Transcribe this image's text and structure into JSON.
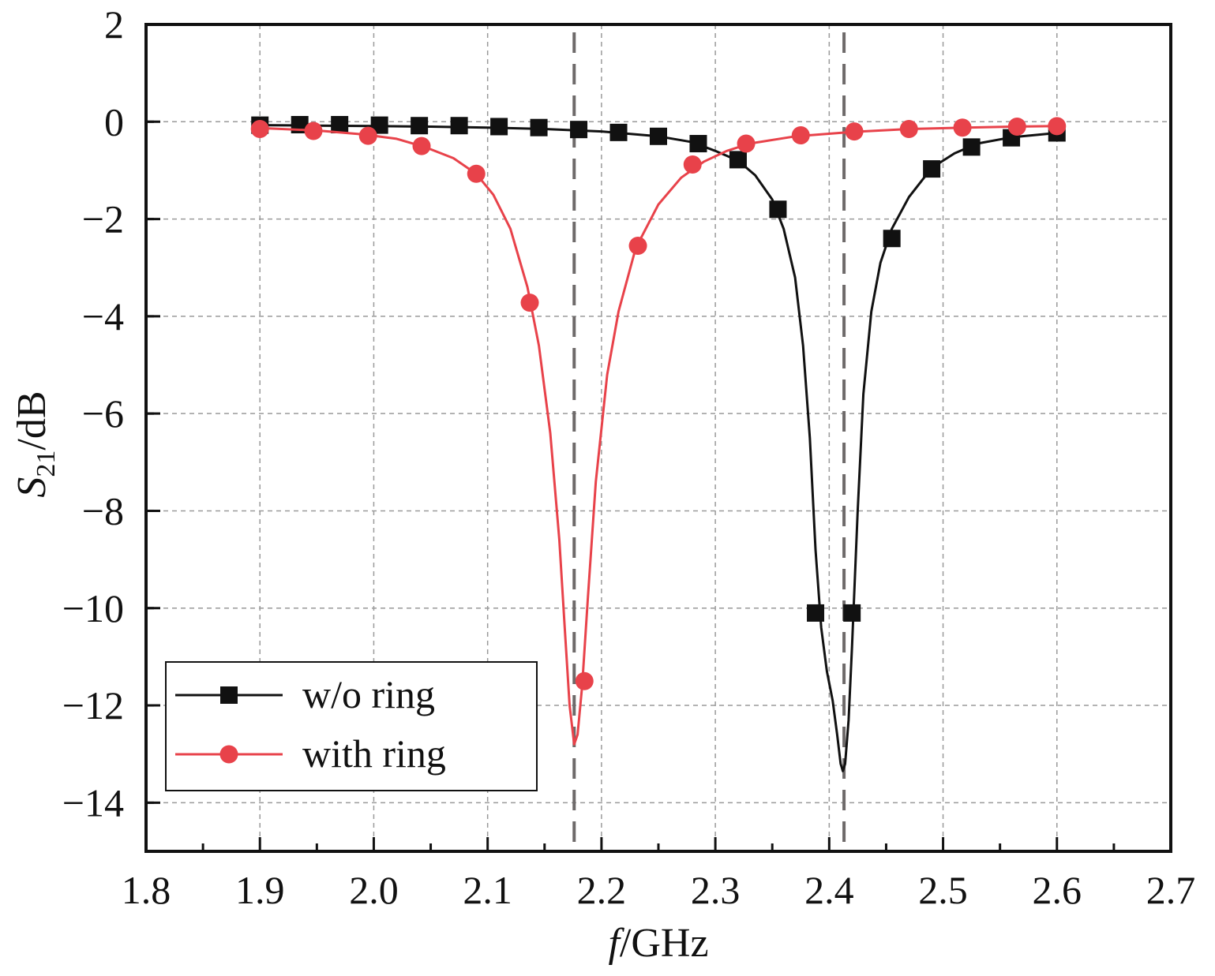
{
  "chart_data": {
    "type": "line",
    "xlabel_italic": "f",
    "xlabel_rest": "/GHz",
    "ylabel_main": "S",
    "ylabel_sub": "21",
    "ylabel_rest": "/dB",
    "xlim": [
      1.8,
      2.7
    ],
    "ylim": [
      -15,
      2
    ],
    "x_ticks": [
      "1.8",
      "1.9",
      "2.0",
      "2.1",
      "2.2",
      "2.3",
      "2.4",
      "2.5",
      "2.6",
      "2.7"
    ],
    "y_ticks": [
      "2",
      "0",
      "−2",
      "−4",
      "−6",
      "−8",
      "−10",
      "−12",
      "−14"
    ],
    "grid": true,
    "legend_position": "bottom-left",
    "reference_lines_x": [
      2.176,
      2.413
    ],
    "series": [
      {
        "name": "w/o ring",
        "color": "#111111",
        "marker": "square",
        "curve": [
          [
            1.9,
            -0.07
          ],
          [
            1.95,
            -0.08
          ],
          [
            2.0,
            -0.09
          ],
          [
            2.05,
            -0.1
          ],
          [
            2.1,
            -0.12
          ],
          [
            2.15,
            -0.15
          ],
          [
            2.2,
            -0.2
          ],
          [
            2.25,
            -0.3
          ],
          [
            2.28,
            -0.42
          ],
          [
            2.3,
            -0.6
          ],
          [
            2.32,
            -0.8
          ],
          [
            2.335,
            -1.1
          ],
          [
            2.35,
            -1.6
          ],
          [
            2.36,
            -2.2
          ],
          [
            2.37,
            -3.2
          ],
          [
            2.377,
            -4.6
          ],
          [
            2.383,
            -6.5
          ],
          [
            2.388,
            -8.8
          ],
          [
            2.393,
            -10.4
          ],
          [
            2.398,
            -11.3
          ],
          [
            2.403,
            -11.9
          ],
          [
            2.407,
            -12.6
          ],
          [
            2.41,
            -13.2
          ],
          [
            2.412,
            -13.35
          ],
          [
            2.414,
            -13.2
          ],
          [
            2.417,
            -12.3
          ],
          [
            2.42,
            -10.8
          ],
          [
            2.425,
            -8.0
          ],
          [
            2.43,
            -5.6
          ],
          [
            2.437,
            -3.9
          ],
          [
            2.445,
            -2.9
          ],
          [
            2.455,
            -2.2
          ],
          [
            2.47,
            -1.55
          ],
          [
            2.49,
            -0.95
          ],
          [
            2.51,
            -0.65
          ],
          [
            2.53,
            -0.45
          ],
          [
            2.56,
            -0.32
          ],
          [
            2.6,
            -0.23
          ]
        ],
        "markers": [
          [
            1.9,
            -0.07
          ],
          [
            1.935,
            -0.06
          ],
          [
            1.97,
            -0.06
          ],
          [
            2.005,
            -0.07
          ],
          [
            2.04,
            -0.08
          ],
          [
            2.075,
            -0.08
          ],
          [
            2.11,
            -0.1
          ],
          [
            2.145,
            -0.12
          ],
          [
            2.18,
            -0.16
          ],
          [
            2.215,
            -0.22
          ],
          [
            2.25,
            -0.3
          ],
          [
            2.285,
            -0.45
          ],
          [
            2.32,
            -0.78
          ],
          [
            2.355,
            -1.8
          ],
          [
            2.388,
            -10.1
          ],
          [
            2.42,
            -10.1
          ],
          [
            2.455,
            -2.4
          ],
          [
            2.49,
            -0.97
          ],
          [
            2.525,
            -0.52
          ],
          [
            2.56,
            -0.33
          ],
          [
            2.6,
            -0.23
          ]
        ]
      },
      {
        "name": "with ring",
        "color": "#e8424a",
        "marker": "circle",
        "curve": [
          [
            1.9,
            -0.13
          ],
          [
            1.95,
            -0.18
          ],
          [
            1.99,
            -0.26
          ],
          [
            2.02,
            -0.35
          ],
          [
            2.045,
            -0.52
          ],
          [
            2.07,
            -0.75
          ],
          [
            2.09,
            -1.07
          ],
          [
            2.105,
            -1.5
          ],
          [
            2.12,
            -2.2
          ],
          [
            2.135,
            -3.4
          ],
          [
            2.145,
            -4.6
          ],
          [
            2.155,
            -6.4
          ],
          [
            2.163,
            -8.6
          ],
          [
            2.168,
            -10.5
          ],
          [
            2.172,
            -12.0
          ],
          [
            2.176,
            -12.8
          ],
          [
            2.179,
            -12.6
          ],
          [
            2.183,
            -11.6
          ],
          [
            2.188,
            -9.8
          ],
          [
            2.195,
            -7.4
          ],
          [
            2.205,
            -5.2
          ],
          [
            2.215,
            -3.9
          ],
          [
            2.23,
            -2.6
          ],
          [
            2.25,
            -1.7
          ],
          [
            2.27,
            -1.15
          ],
          [
            2.29,
            -0.82
          ],
          [
            2.31,
            -0.6
          ],
          [
            2.33,
            -0.45
          ],
          [
            2.37,
            -0.3
          ],
          [
            2.42,
            -0.21
          ],
          [
            2.47,
            -0.15
          ],
          [
            2.52,
            -0.12
          ],
          [
            2.56,
            -0.1
          ],
          [
            2.6,
            -0.09
          ]
        ],
        "markers": [
          [
            1.9,
            -0.15
          ],
          [
            1.947,
            -0.19
          ],
          [
            1.995,
            -0.29
          ],
          [
            2.042,
            -0.5
          ],
          [
            2.09,
            -1.07
          ],
          [
            2.137,
            -3.72
          ],
          [
            2.185,
            -11.5
          ],
          [
            2.232,
            -2.55
          ],
          [
            2.28,
            -0.88
          ],
          [
            2.327,
            -0.45
          ],
          [
            2.375,
            -0.28
          ],
          [
            2.422,
            -0.2
          ],
          [
            2.47,
            -0.15
          ],
          [
            2.517,
            -0.12
          ],
          [
            2.565,
            -0.1
          ],
          [
            2.6,
            -0.09
          ]
        ]
      }
    ]
  }
}
